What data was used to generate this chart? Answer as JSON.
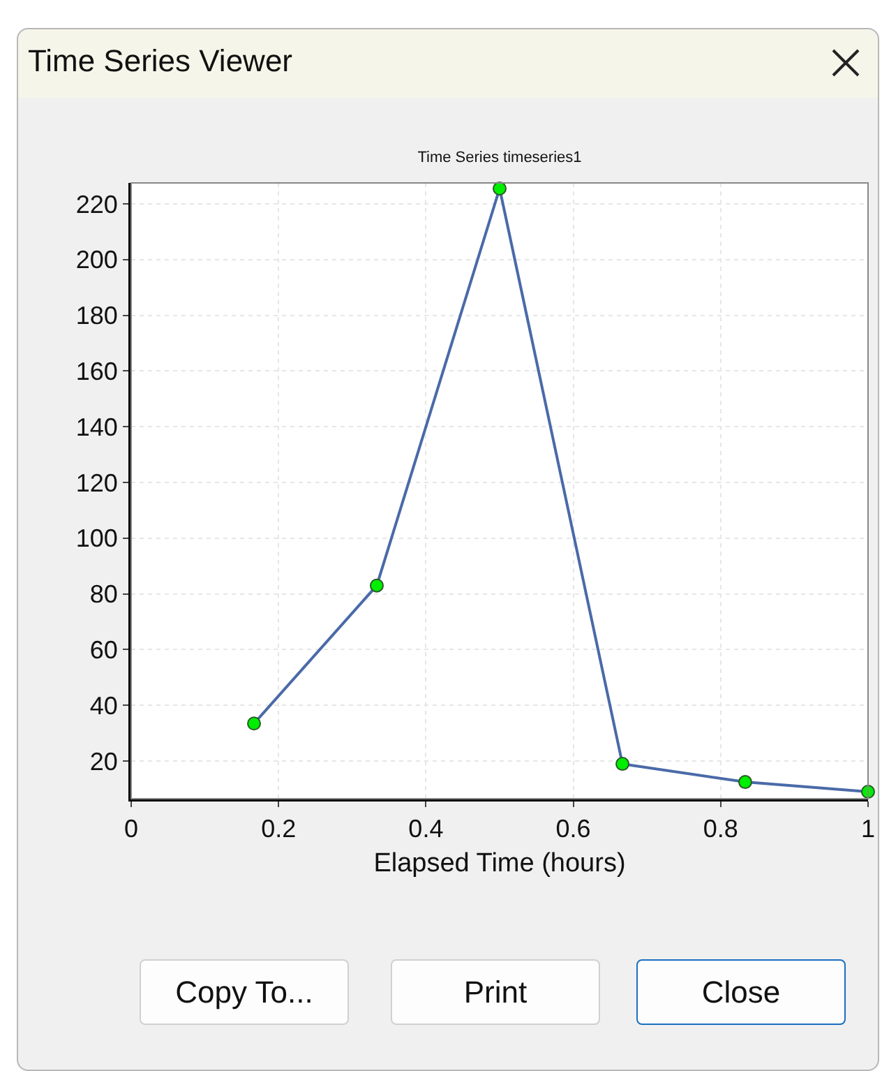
{
  "chart_data": {
    "type": "line",
    "title": "Time Series timeseries1",
    "xlabel": "Elapsed Time (hours)",
    "x": [
      0.1667,
      0.3333,
      0.5,
      0.6667,
      0.8333,
      1
    ],
    "series": [
      {
        "color": "#4a6aa8",
        "values": [
          33.5,
          83,
          225.5,
          19,
          12.5,
          9
        ]
      }
    ],
    "xlim": [
      0,
      1
    ],
    "xticks": [
      0,
      0.2,
      0.4,
      0.6,
      0.8,
      1
    ],
    "ylim": [
      6.5,
      227.5
    ],
    "yticks": [
      20,
      40,
      60,
      80,
      100,
      120,
      140,
      160,
      180,
      200,
      220
    ],
    "grid": true,
    "marker": "circle",
    "line_style": "solid",
    "legend": false,
    "annotations": [
      "Time Series Viewer",
      "Copy To...",
      "Print",
      "Close"
    ]
  }
}
